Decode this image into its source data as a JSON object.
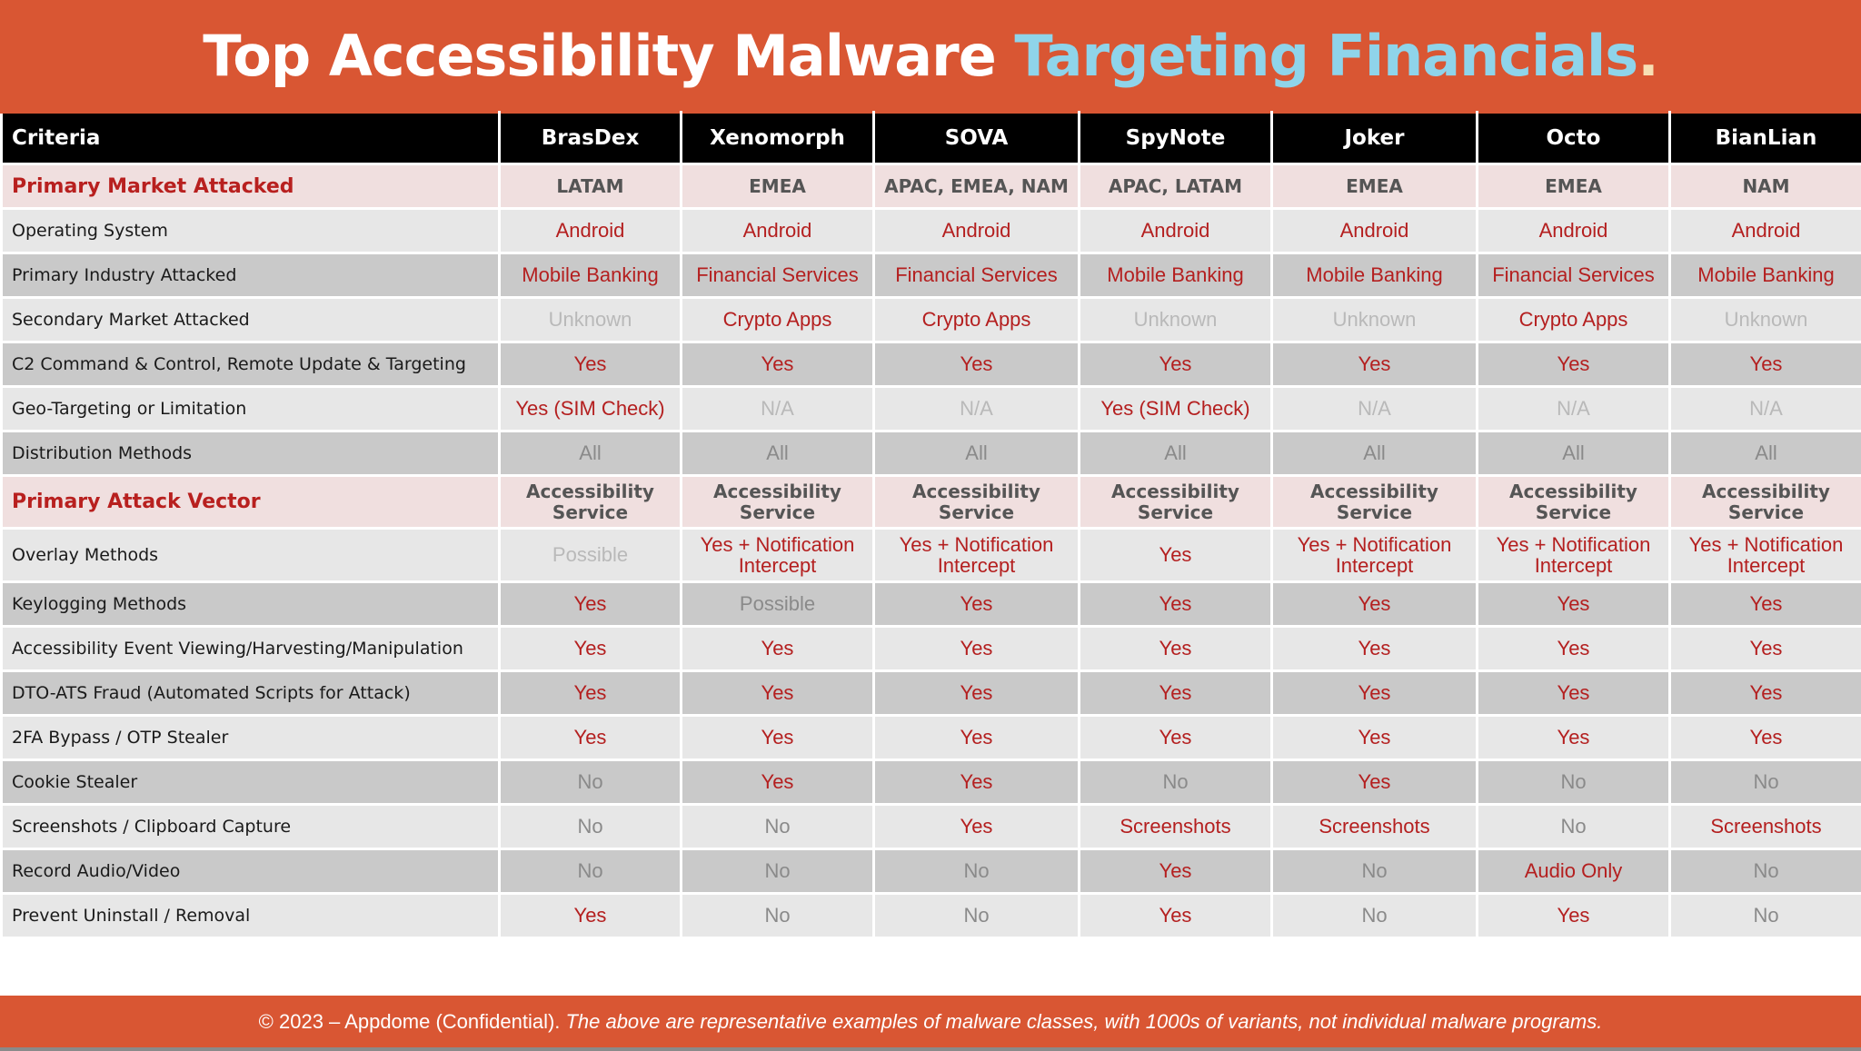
{
  "title": {
    "part1": "Top Accessibility Malware ",
    "part2": "Targeting Financials",
    "part3": "."
  },
  "colors": {
    "brand_orange": "#d95633",
    "accent_blue": "#8fd4ea",
    "value_red": "#b41f1f",
    "section_bg": "#f0dfdf"
  },
  "table": {
    "headers": [
      "Criteria",
      "BrasDex",
      "Xenomorph",
      "SOVA",
      "SpyNote",
      "Joker",
      "Octo",
      "BianLian"
    ],
    "rows": [
      {
        "label": "Primary Market Attacked",
        "section": true,
        "values": [
          "LATAM",
          "EMEA",
          "APAC, EMEA, NAM",
          "APAC, LATAM",
          "EMEA",
          "EMEA",
          "NAM"
        ]
      },
      {
        "label": "Operating System",
        "values": [
          "Android",
          "Android",
          "Android",
          "Android",
          "Android",
          "Android",
          "Android"
        ]
      },
      {
        "label": "Primary Industry Attacked",
        "values": [
          "Mobile Banking",
          "Financial Services",
          "Financial Services",
          "Mobile Banking",
          "Mobile Banking",
          "Financial Services",
          "Mobile Banking"
        ]
      },
      {
        "label": "Secondary Market Attacked",
        "values": [
          "Unknown",
          "Crypto Apps",
          "Crypto Apps",
          "Unknown",
          "Unknown",
          "Crypto Apps",
          "Unknown"
        ]
      },
      {
        "label": "C2 Command & Control, Remote Update & Targeting",
        "values": [
          "Yes",
          "Yes",
          "Yes",
          "Yes",
          "Yes",
          "Yes",
          "Yes"
        ]
      },
      {
        "label": "Geo-Targeting or Limitation",
        "values": [
          "Yes (SIM Check)",
          "N/A",
          "N/A",
          "Yes (SIM Check)",
          "N/A",
          "N/A",
          "N/A"
        ]
      },
      {
        "label": "Distribution Methods",
        "values": [
          "All",
          "All",
          "All",
          "All",
          "All",
          "All",
          "All"
        ]
      },
      {
        "label": "Primary Attack Vector",
        "section": true,
        "values": [
          "Accessibility Service",
          "Accessibility Service",
          "Accessibility Service",
          "Accessibility Service",
          "Accessibility Service",
          "Accessibility Service",
          "Accessibility Service"
        ]
      },
      {
        "label": "Overlay Methods",
        "values": [
          "Possible",
          "Yes + Notification Intercept",
          "Yes + Notification Intercept",
          "Yes",
          "Yes + Notification Intercept",
          "Yes + Notification Intercept",
          "Yes + Notification Intercept"
        ]
      },
      {
        "label": "Keylogging Methods",
        "values": [
          "Yes",
          "Possible",
          "Yes",
          "Yes",
          "Yes",
          "Yes",
          "Yes"
        ]
      },
      {
        "label": "Accessibility Event Viewing/Harvesting/Manipulation",
        "values": [
          "Yes",
          "Yes",
          "Yes",
          "Yes",
          "Yes",
          "Yes",
          "Yes"
        ]
      },
      {
        "label": "DTO-ATS Fraud (Automated Scripts for Attack)",
        "values": [
          "Yes",
          "Yes",
          "Yes",
          "Yes",
          "Yes",
          "Yes",
          "Yes"
        ]
      },
      {
        "label": "2FA Bypass / OTP Stealer",
        "values": [
          "Yes",
          "Yes",
          "Yes",
          "Yes",
          "Yes",
          "Yes",
          "Yes"
        ]
      },
      {
        "label": "Cookie Stealer",
        "values": [
          "No",
          "Yes",
          "Yes",
          "No",
          "Yes",
          "No",
          "No"
        ]
      },
      {
        "label": "Screenshots / Clipboard Capture",
        "values": [
          "No",
          "No",
          "Yes",
          "Screenshots",
          "Screenshots",
          "No",
          "Screenshots"
        ]
      },
      {
        "label": "Record Audio/Video",
        "values": [
          "No",
          "No",
          "No",
          "Yes",
          "No",
          "Audio Only",
          "No"
        ]
      },
      {
        "label": "Prevent Uninstall / Removal",
        "values": [
          "Yes",
          "No",
          "No",
          "Yes",
          "No",
          "Yes",
          "No"
        ]
      }
    ]
  },
  "footer": {
    "copyright": "© 2023 – Appdome (Confidential).",
    "disclaimer": "The above are representative examples of malware classes, with 1000s of variants, not individual malware programs."
  }
}
